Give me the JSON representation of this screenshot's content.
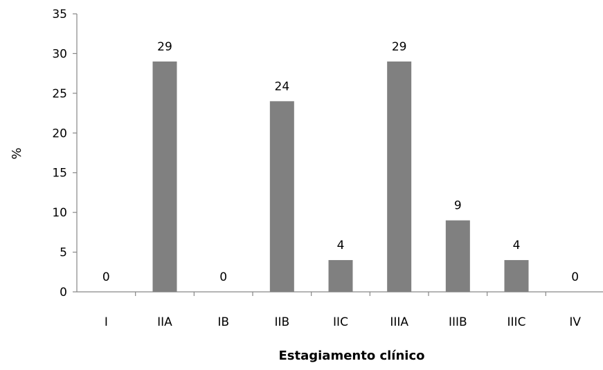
{
  "chart_data": {
    "type": "bar",
    "title": "",
    "xlabel": "Estagiamento clínico",
    "ylabel": "%",
    "categories": [
      "I",
      "IIA",
      "IB",
      "IIB",
      "IIC",
      "IIIA",
      "IIIB",
      "IIIC",
      "IV"
    ],
    "values": [
      0,
      29,
      0,
      24,
      4,
      29,
      9,
      4,
      0
    ],
    "data_labels": [
      "0",
      "29",
      "0",
      "24",
      "4",
      "29",
      "9",
      "4",
      "0"
    ],
    "ylim": [
      0,
      35
    ],
    "yticks": [
      0,
      5,
      10,
      15,
      20,
      25,
      30,
      35
    ],
    "grid": false,
    "legend": "none",
    "bar_color": "#808080",
    "axis_color": "#868686"
  }
}
